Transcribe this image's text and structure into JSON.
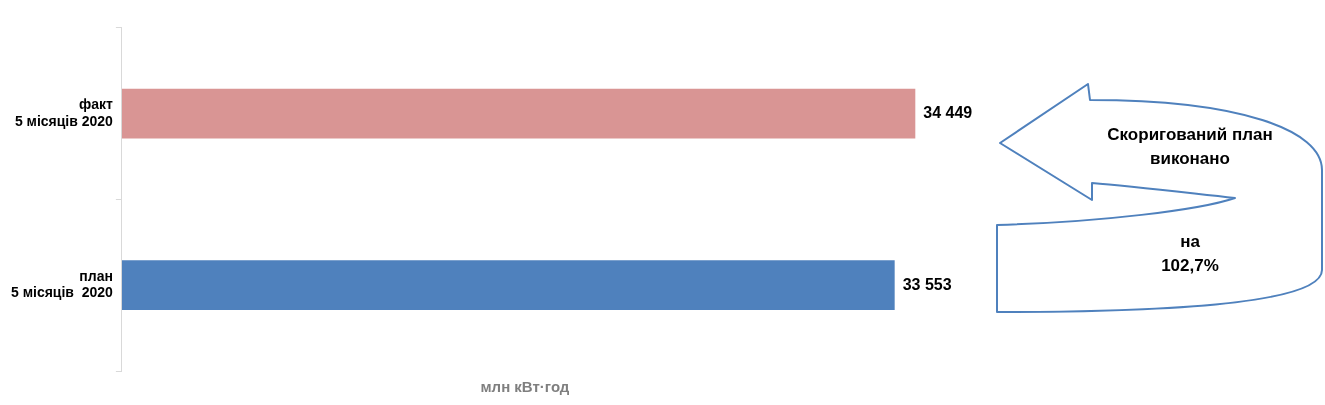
{
  "chart_data": {
    "type": "bar",
    "orientation": "horizontal",
    "categories": [
      "факт\n5 місяців 2020",
      "план\n5 місяців  2020"
    ],
    "values": [
      34449,
      33553
    ],
    "colors": [
      "#d99594",
      "#4f81bd"
    ],
    "value_labels": [
      "34 449",
      "33 553"
    ],
    "xlabel": "млн кВт·год",
    "grid": false,
    "legend": false,
    "annotations": [
      "Скоригований план виконано",
      "на 102,7%"
    ]
  }
}
